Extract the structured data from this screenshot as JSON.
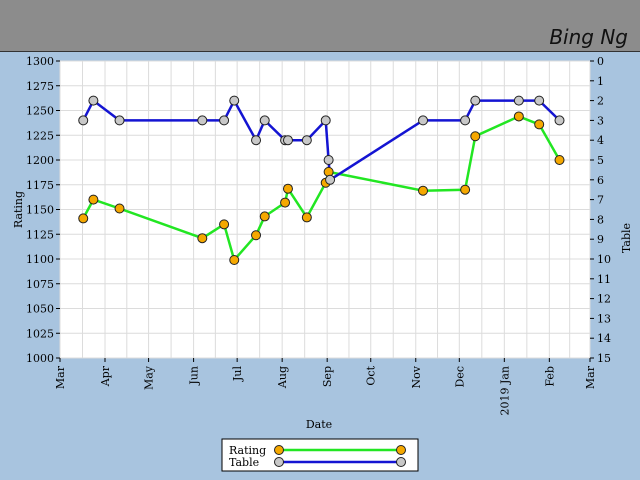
{
  "header": {
    "player_name": "Bing Ng"
  },
  "colors": {
    "background": "#a8c4df",
    "header": "#8c8c8c",
    "plot_bg": "#ffffff",
    "grid": "#dcdcdc",
    "rating_line": "#22e622",
    "rating_marker": "#f5a800",
    "table_line": "#1414d2",
    "table_marker": "#c8c8c8"
  },
  "chart_data": {
    "type": "line",
    "title": "",
    "xlabel": "Date",
    "ylabel_left": "Rating",
    "ylabel_right": "Table",
    "x_axis": {
      "type": "date",
      "range": [
        "2018-03-01",
        "2019-03-01"
      ],
      "ticks": [
        {
          "date": "2018-03-01",
          "label": "Mar"
        },
        {
          "date": "2018-04-01",
          "label": "Apr"
        },
        {
          "date": "2018-05-01",
          "label": "May"
        },
        {
          "date": "2018-06-01",
          "label": "Jun"
        },
        {
          "date": "2018-07-01",
          "label": "Jul"
        },
        {
          "date": "2018-08-01",
          "label": "Aug"
        },
        {
          "date": "2018-09-01",
          "label": "Sep"
        },
        {
          "date": "2018-10-01",
          "label": "Oct"
        },
        {
          "date": "2018-11-01",
          "label": "Nov"
        },
        {
          "date": "2018-12-01",
          "label": "Dec"
        },
        {
          "date": "2019-01-01",
          "label": "2019 Jan"
        },
        {
          "date": "2019-02-01",
          "label": "Feb"
        },
        {
          "date": "2019-03-01",
          "label": "Mar"
        }
      ]
    },
    "y_left": {
      "min": 1000,
      "max": 1300,
      "step": 25
    },
    "y_right": {
      "min": 0,
      "max": 15,
      "step": 1,
      "inverted": true
    },
    "grid": true,
    "legend": {
      "position": "bottom-center",
      "entries": [
        "Rating",
        "Table"
      ]
    },
    "series": [
      {
        "name": "Rating",
        "axis": "left",
        "points": [
          {
            "x": "2018-03-17",
            "y": 1141
          },
          {
            "x": "2018-03-24",
            "y": 1160
          },
          {
            "x": "2018-04-11",
            "y": 1151
          },
          {
            "x": "2018-06-07",
            "y": 1121
          },
          {
            "x": "2018-06-22",
            "y": 1135
          },
          {
            "x": "2018-06-29",
            "y": 1099
          },
          {
            "x": "2018-07-14",
            "y": 1124
          },
          {
            "x": "2018-07-20",
            "y": 1143
          },
          {
            "x": "2018-08-03",
            "y": 1157
          },
          {
            "x": "2018-08-05",
            "y": 1171
          },
          {
            "x": "2018-08-18",
            "y": 1142
          },
          {
            "x": "2018-08-31",
            "y": 1177
          },
          {
            "x": "2018-09-02",
            "y": 1188
          },
          {
            "x": "2018-11-06",
            "y": 1169
          },
          {
            "x": "2018-12-05",
            "y": 1170
          },
          {
            "x": "2018-12-12",
            "y": 1224
          },
          {
            "x": "2019-01-11",
            "y": 1244
          },
          {
            "x": "2019-01-25",
            "y": 1236
          },
          {
            "x": "2019-02-08",
            "y": 1200
          }
        ]
      },
      {
        "name": "Table",
        "axis": "right",
        "points": [
          {
            "x": "2018-03-17",
            "y": 3
          },
          {
            "x": "2018-03-24",
            "y": 2
          },
          {
            "x": "2018-04-11",
            "y": 3
          },
          {
            "x": "2018-06-07",
            "y": 3
          },
          {
            "x": "2018-06-22",
            "y": 3
          },
          {
            "x": "2018-06-29",
            "y": 2
          },
          {
            "x": "2018-07-14",
            "y": 4
          },
          {
            "x": "2018-07-20",
            "y": 3
          },
          {
            "x": "2018-08-03",
            "y": 4
          },
          {
            "x": "2018-08-05",
            "y": 4
          },
          {
            "x": "2018-08-18",
            "y": 4
          },
          {
            "x": "2018-08-31",
            "y": 3
          },
          {
            "x": "2018-09-02",
            "y": 5
          },
          {
            "x": "2018-09-03",
            "y": 6
          },
          {
            "x": "2018-11-06",
            "y": 3
          },
          {
            "x": "2018-12-05",
            "y": 3
          },
          {
            "x": "2018-12-12",
            "y": 2
          },
          {
            "x": "2019-01-11",
            "y": 2
          },
          {
            "x": "2019-01-25",
            "y": 2
          },
          {
            "x": "2019-02-08",
            "y": 3
          }
        ]
      }
    ]
  }
}
